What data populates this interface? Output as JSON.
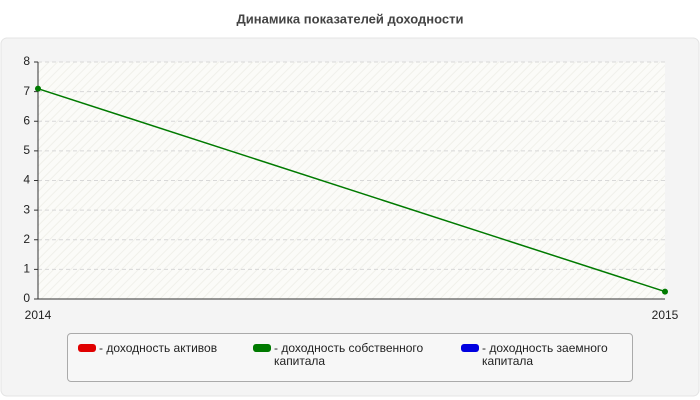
{
  "chart_data": {
    "type": "line",
    "title": "Динамика показателей доходности",
    "categories": [
      "2014",
      "2015"
    ],
    "series": [
      {
        "name": "- доходность активов",
        "color": "#e00000",
        "values": [
          null,
          null
        ]
      },
      {
        "name": "- доходность собственного капитала",
        "color": "#007a00",
        "values": [
          7.1,
          0.25
        ]
      },
      {
        "name": "- доходность заемного капитала",
        "color": "#0000e0",
        "values": [
          null,
          null
        ]
      }
    ],
    "ylim": [
      0,
      8
    ],
    "yticks": [
      0,
      1,
      2,
      3,
      4,
      5,
      6,
      7,
      8
    ],
    "grid": true
  }
}
